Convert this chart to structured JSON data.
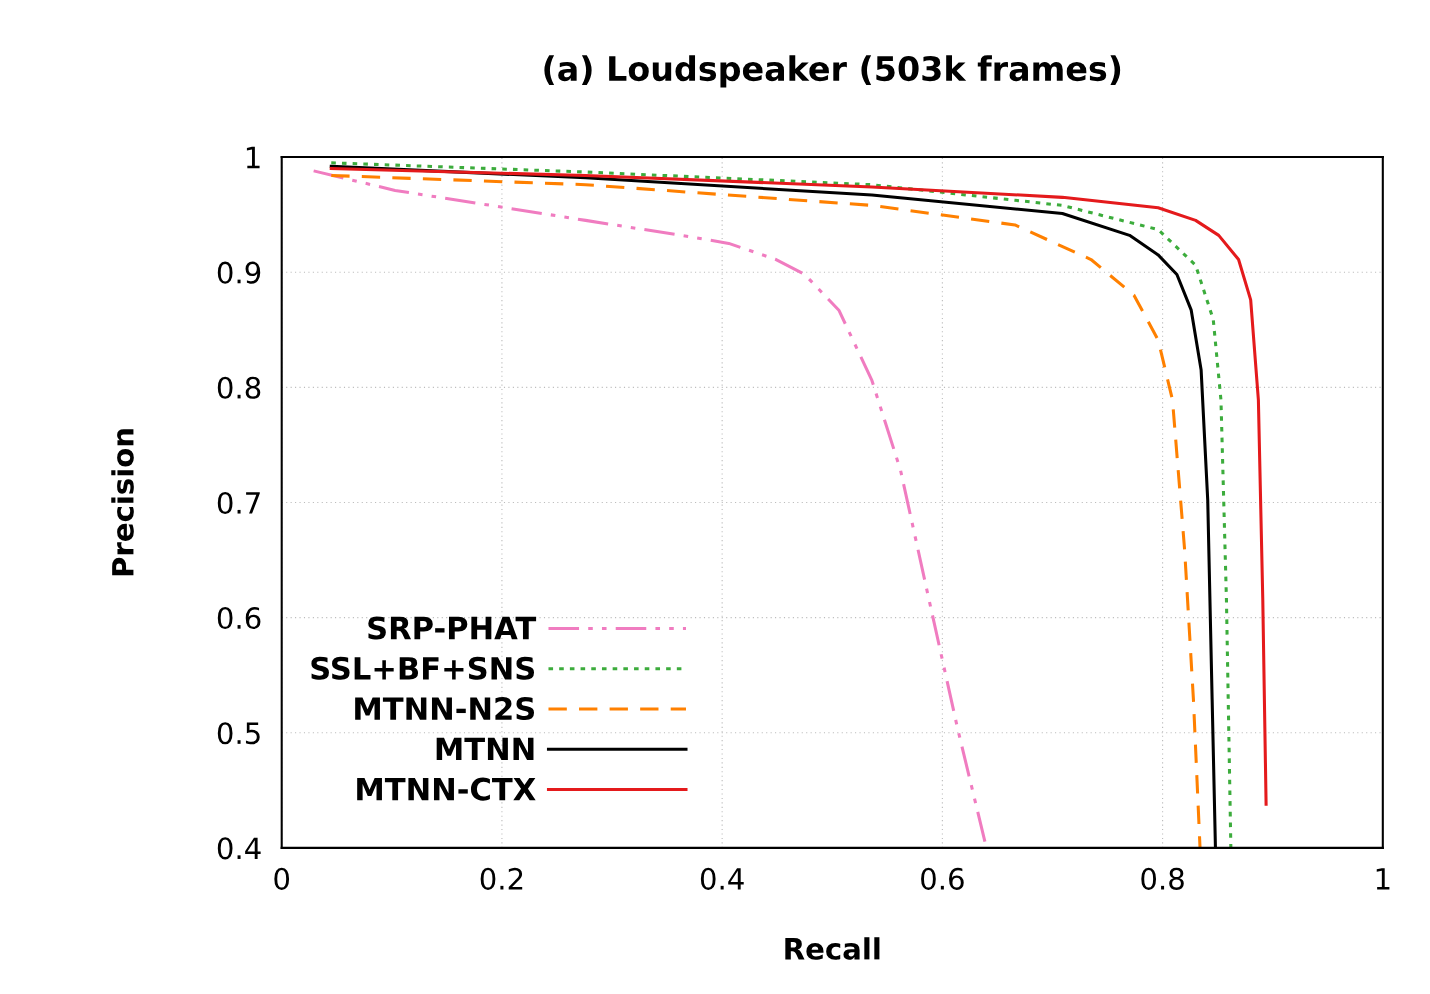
{
  "chart_data": {
    "type": "line",
    "title": "(a) Loudspeaker (503k frames)",
    "xlabel": "Recall",
    "ylabel": "Precision",
    "xlim": [
      0,
      1
    ],
    "ylim": [
      0.4,
      1
    ],
    "xticks": [
      0,
      0.2,
      0.4,
      0.6,
      0.8,
      1
    ],
    "yticks": [
      0.4,
      0.5,
      0.6,
      0.7,
      0.8,
      0.9,
      1
    ],
    "grid": true,
    "legend": "bottom left",
    "marker": "none",
    "series": [
      {
        "name": "SRP-PHAT",
        "color": "#f07cc0",
        "line_style": "dashdotdot",
        "x": [
          0.029,
          0.103,
          0.19,
          0.276,
          0.363,
          0.406,
          0.449,
          0.475,
          0.506,
          0.536,
          0.562,
          0.588,
          0.614,
          0.64
        ],
        "values": [
          0.988,
          0.971,
          0.958,
          0.945,
          0.932,
          0.925,
          0.911,
          0.898,
          0.867,
          0.806,
          0.728,
          0.615,
          0.503,
          0.4
        ]
      },
      {
        "name": "SSL+BF+SNS",
        "color": "#3cac3c",
        "line_style": "dotted",
        "x": [
          0.045,
          0.276,
          0.536,
          0.709,
          0.796,
          0.83,
          0.846,
          0.853,
          0.858,
          0.862
        ],
        "values": [
          0.995,
          0.987,
          0.976,
          0.958,
          0.937,
          0.906,
          0.859,
          0.789,
          0.615,
          0.4
        ]
      },
      {
        "name": "MTNN-N2S",
        "color": "#ff8000",
        "line_style": "dashed",
        "x": [
          0.045,
          0.276,
          0.536,
          0.666,
          0.735,
          0.774,
          0.796,
          0.809,
          0.82,
          0.828,
          0.834
        ],
        "values": [
          0.984,
          0.976,
          0.958,
          0.941,
          0.911,
          0.88,
          0.841,
          0.789,
          0.659,
          0.529,
          0.4
        ]
      },
      {
        "name": "MTNN",
        "color": "#000000",
        "line_style": "solid",
        "x": [
          0.045,
          0.276,
          0.536,
          0.709,
          0.77,
          0.796,
          0.813,
          0.826,
          0.835,
          0.841,
          0.845,
          0.848
        ],
        "values": [
          0.992,
          0.982,
          0.967,
          0.951,
          0.932,
          0.915,
          0.898,
          0.867,
          0.815,
          0.702,
          0.529,
          0.4
        ]
      },
      {
        "name": "MTNN-CTX",
        "color": "#e41a1c",
        "line_style": "solid",
        "x": [
          0.045,
          0.276,
          0.536,
          0.709,
          0.796,
          0.83,
          0.851,
          0.869,
          0.88,
          0.887,
          0.891,
          0.894
        ],
        "values": [
          0.99,
          0.984,
          0.974,
          0.965,
          0.956,
          0.945,
          0.932,
          0.911,
          0.876,
          0.789,
          0.615,
          0.438
        ]
      }
    ]
  }
}
